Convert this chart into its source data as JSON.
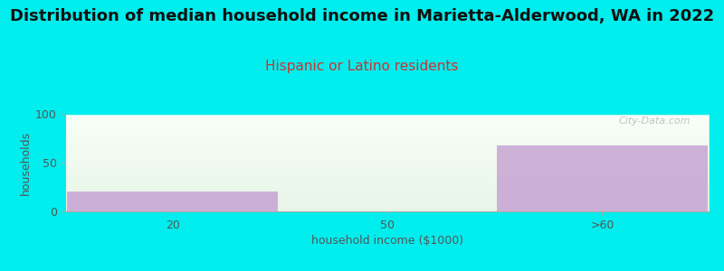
{
  "title": "Distribution of median household income in Marietta-Alderwood, WA in 2022",
  "subtitle": "Hispanic or Latino residents",
  "xlabel": "household income ($1000)",
  "ylabel": "households",
  "categories": [
    "20",
    "50",
    ">60"
  ],
  "values": [
    20,
    0,
    68
  ],
  "bar_color": "#c9a8d4",
  "bar_alpha": 0.9,
  "ylim": [
    0,
    100
  ],
  "yticks": [
    0,
    50,
    100
  ],
  "background_color": "#00EEEE",
  "title_fontsize": 13,
  "subtitle_fontsize": 11,
  "subtitle_color": "#cc3333",
  "axis_label_color": "#555555",
  "tick_color": "#555555",
  "watermark": "City-Data.com",
  "bar_width": 0.98,
  "grad_top_color": "#f8fff8",
  "grad_bottom_color": "#e0f2e0"
}
